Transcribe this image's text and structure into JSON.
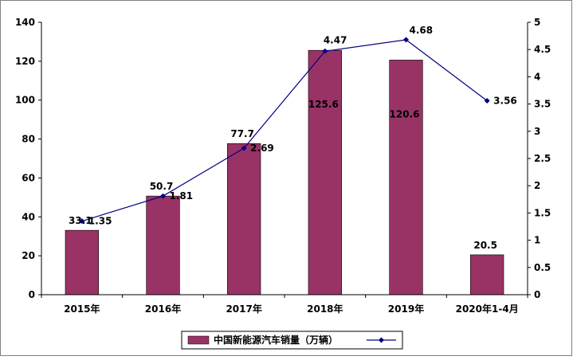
{
  "chart_data": {
    "type": "bar",
    "categories": [
      "2015年",
      "2016年",
      "2017年",
      "2018年",
      "2019年",
      "2020年1-4月"
    ],
    "series": [
      {
        "name": "中国新能源汽车销量（万辆）",
        "type": "bar",
        "axis": "left",
        "values": [
          33.1,
          50.7,
          77.7,
          125.6,
          120.6,
          20.5
        ],
        "labels": [
          "33.1",
          "50.7",
          "77.7",
          "125.6",
          "120.6",
          "20.5"
        ]
      },
      {
        "type": "line",
        "axis": "right",
        "values": [
          1.35,
          1.81,
          2.69,
          4.47,
          4.68,
          3.56
        ],
        "labels": [
          "1.35",
          "1.81",
          "2.69",
          "4.47",
          "4.68",
          "3.56"
        ]
      }
    ],
    "ylim_left": [
      0,
      140
    ],
    "yticks_left": [
      "0",
      "20",
      "40",
      "60",
      "80",
      "100",
      "120",
      "140"
    ],
    "ylim_right": [
      0,
      5
    ],
    "yticks_right": [
      "0",
      "0.5",
      "1",
      "1.5",
      "2",
      "2.5",
      "3",
      "3.5",
      "4",
      "4.5",
      "5"
    ],
    "grid": false,
    "legend_position": "bottom",
    "legend_line_label": "",
    "colors": {
      "bar": "#993366",
      "line": "#000080",
      "axis": "#000000"
    }
  }
}
